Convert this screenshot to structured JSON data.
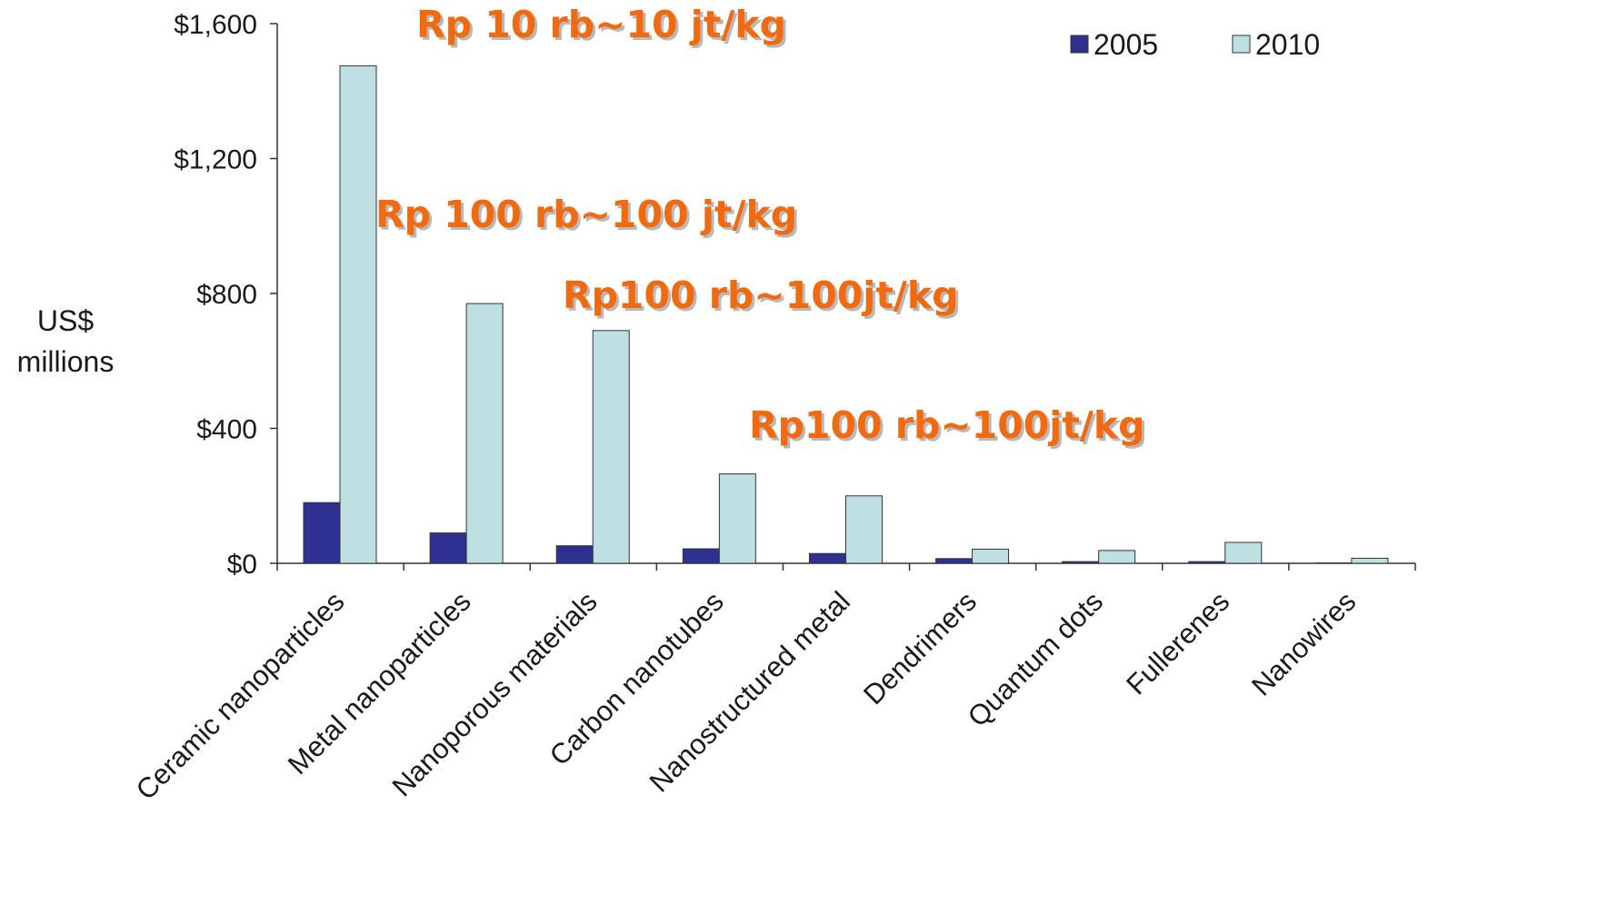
{
  "chart_data": {
    "type": "bar",
    "categories": [
      "Ceramic nanoparticles",
      "Metal nanoparticles",
      "Nanoporous materials",
      "Carbon nanotubes",
      "Nanostructured metal",
      "Dendrimers",
      "Quantum dots",
      "Fullerenes",
      "Nanowires"
    ],
    "series": [
      {
        "name": "2005",
        "color": "#2e3192",
        "values": [
          180,
          90,
          52,
          43,
          29,
          14,
          5,
          5,
          1
        ]
      },
      {
        "name": "2010",
        "color": "#bfe0e2",
        "values": [
          1475,
          770,
          690,
          265,
          200,
          42,
          38,
          62,
          15
        ]
      }
    ],
    "ylabel": [
      "US$",
      "millions"
    ],
    "ylim": [
      0,
      1600
    ],
    "yticks": [
      0,
      400,
      800,
      1200,
      1600
    ],
    "ytick_labels": [
      "$0",
      "$400",
      "$800",
      "$1,200",
      "$1,600"
    ],
    "legend_position": "top-right",
    "annotations": [
      "Rp 10 rb~10 jt/kg",
      "Rp 100 rb~100 jt/kg",
      "Rp100 rb~100jt/kg",
      "Rp100 rb~100jt/kg"
    ]
  }
}
